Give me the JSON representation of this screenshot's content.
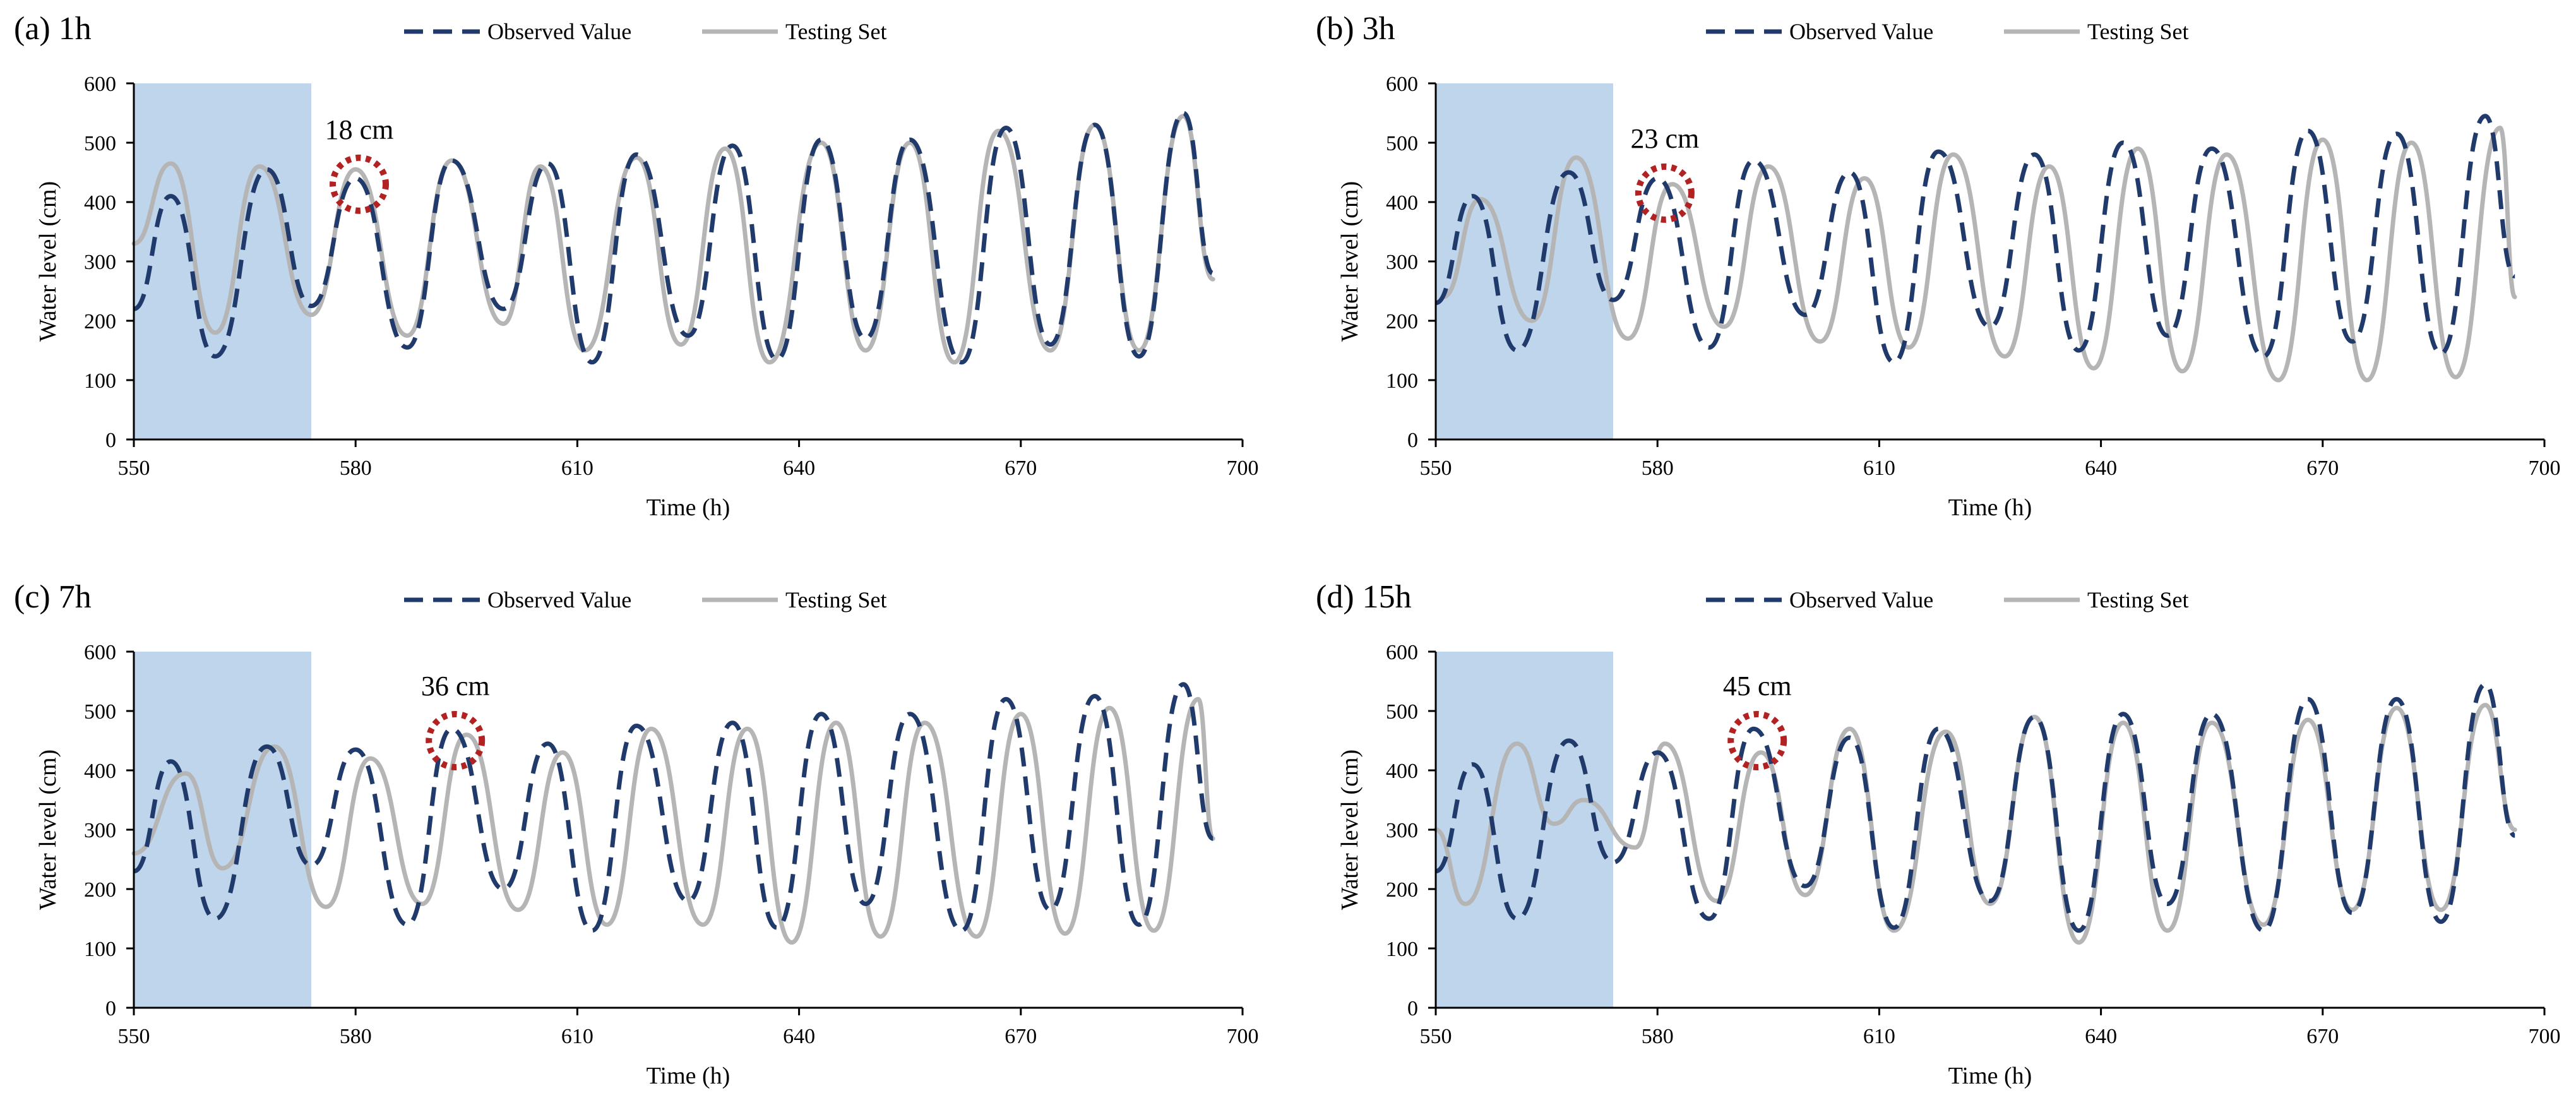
{
  "figure": {
    "colors": {
      "observed": "#1f3a6b",
      "testing": "#b5b5b5",
      "shade": "#bfd5ec",
      "circle": "#b22222",
      "axis": "#000000"
    }
  },
  "chart_data": [
    {
      "type": "line",
      "panel_label": "(a) 1h",
      "xlabel": "Time (h)",
      "ylabel": "Water level (cm)",
      "xlim": [
        550,
        700
      ],
      "ylim": [
        0,
        600
      ],
      "x_ticks": [
        550,
        580,
        610,
        640,
        670,
        700
      ],
      "y_ticks": [
        0,
        100,
        200,
        300,
        400,
        500,
        600
      ],
      "legend": [
        "Observed Value",
        "Testing Set"
      ],
      "shaded_range": [
        550,
        574
      ],
      "annotation": {
        "text": "18 cm",
        "x": 580.5,
        "y": 430
      },
      "series": [
        {
          "name": "Observed Value",
          "x": [
            550,
            555,
            561,
            568,
            574,
            580,
            587,
            593,
            600,
            606,
            612,
            618,
            625,
            631,
            637,
            643,
            649,
            655,
            662,
            668,
            674,
            680,
            686,
            692,
            696
          ],
          "values": [
            220,
            410,
            140,
            455,
            225,
            440,
            155,
            470,
            220,
            465,
            130,
            480,
            175,
            495,
            135,
            505,
            170,
            505,
            130,
            525,
            160,
            530,
            140,
            550,
            280
          ]
        },
        {
          "name": "Testing Set",
          "x": [
            550,
            555,
            561,
            567,
            574,
            580,
            587,
            593,
            600,
            605,
            611,
            618,
            624,
            630,
            636,
            643,
            649,
            655,
            661,
            667,
            674,
            680,
            686,
            692,
            696
          ],
          "values": [
            330,
            465,
            180,
            460,
            210,
            455,
            175,
            470,
            195,
            460,
            150,
            475,
            160,
            490,
            130,
            500,
            150,
            500,
            130,
            520,
            150,
            530,
            150,
            545,
            270
          ]
        }
      ]
    },
    {
      "type": "line",
      "panel_label": "(b) 3h",
      "xlabel": "Time (h)",
      "ylabel": "Water level (cm)",
      "xlim": [
        550,
        700
      ],
      "ylim": [
        0,
        600
      ],
      "x_ticks": [
        550,
        580,
        610,
        640,
        670,
        700
      ],
      "y_ticks": [
        0,
        100,
        200,
        300,
        400,
        500,
        600
      ],
      "legend": [
        "Observed Value",
        "Testing Set"
      ],
      "shaded_range": [
        550,
        574
      ],
      "annotation": {
        "text": "23 cm",
        "x": 581,
        "y": 415
      },
      "series": [
        {
          "name": "Observed Value",
          "x": [
            550,
            555,
            561,
            568,
            574,
            580,
            587,
            593,
            600,
            606,
            612,
            618,
            625,
            631,
            637,
            643,
            649,
            655,
            662,
            668,
            674,
            680,
            686,
            692,
            696
          ],
          "values": [
            230,
            410,
            150,
            450,
            235,
            440,
            155,
            470,
            210,
            450,
            130,
            485,
            190,
            480,
            150,
            500,
            175,
            490,
            140,
            520,
            165,
            515,
            145,
            545,
            275
          ]
        },
        {
          "name": "Testing Set",
          "x": [
            551,
            556,
            563,
            569,
            576,
            582,
            589,
            595,
            602,
            608,
            614,
            620,
            627,
            633,
            639,
            645,
            651,
            657,
            664,
            670,
            676,
            682,
            688,
            694,
            696
          ],
          "values": [
            240,
            405,
            200,
            475,
            170,
            430,
            190,
            460,
            165,
            440,
            155,
            480,
            140,
            460,
            120,
            490,
            115,
            480,
            100,
            505,
            100,
            500,
            105,
            525,
            240
          ]
        }
      ]
    },
    {
      "type": "line",
      "panel_label": "(c) 7h",
      "xlabel": "Time (h)",
      "ylabel": "Water level (cm)",
      "xlim": [
        550,
        700
      ],
      "ylim": [
        0,
        600
      ],
      "x_ticks": [
        550,
        580,
        610,
        640,
        670,
        700
      ],
      "y_ticks": [
        0,
        100,
        200,
        300,
        400,
        500,
        600
      ],
      "legend": [
        "Observed Value",
        "Testing Set"
      ],
      "shaded_range": [
        550,
        574
      ],
      "annotation": {
        "text": "36 cm",
        "x": 593.5,
        "y": 450
      },
      "series": [
        {
          "name": "Observed Value",
          "x": [
            550,
            555,
            561,
            568,
            574,
            580,
            587,
            593,
            600,
            606,
            612,
            618,
            625,
            631,
            637,
            643,
            649,
            655,
            662,
            668,
            674,
            680,
            686,
            692,
            696
          ],
          "values": [
            230,
            415,
            150,
            440,
            240,
            435,
            140,
            470,
            200,
            445,
            130,
            475,
            180,
            480,
            135,
            495,
            175,
            495,
            130,
            520,
            165,
            525,
            140,
            545,
            285
          ]
        },
        {
          "name": "Testing Set",
          "x": [
            550,
            557,
            562,
            569,
            576,
            582,
            589,
            595,
            602,
            608,
            614,
            620,
            627,
            633,
            639,
            645,
            651,
            657,
            664,
            670,
            676,
            682,
            688,
            694,
            696
          ],
          "values": [
            260,
            395,
            235,
            440,
            170,
            420,
            175,
            460,
            165,
            430,
            140,
            470,
            140,
            470,
            110,
            480,
            120,
            480,
            120,
            495,
            125,
            505,
            130,
            520,
            285
          ]
        }
      ]
    },
    {
      "type": "line",
      "panel_label": "(d) 15h",
      "xlabel": "Time (h)",
      "ylabel": "Water level (cm)",
      "xlim": [
        550,
        700
      ],
      "ylim": [
        0,
        600
      ],
      "x_ticks": [
        550,
        580,
        610,
        640,
        670,
        700
      ],
      "y_ticks": [
        0,
        100,
        200,
        300,
        400,
        500,
        600
      ],
      "legend": [
        "Observed Value",
        "Testing Set"
      ],
      "shaded_range": [
        550,
        574
      ],
      "annotation": {
        "text": "45 cm",
        "x": 593.5,
        "y": 450
      },
      "series": [
        {
          "name": "Observed Value",
          "x": [
            550,
            555,
            561,
            568,
            574,
            580,
            587,
            593,
            600,
            606,
            612,
            618,
            625,
            631,
            637,
            643,
            649,
            655,
            662,
            668,
            674,
            680,
            686,
            692,
            696
          ],
          "values": [
            230,
            410,
            150,
            450,
            245,
            430,
            150,
            470,
            205,
            455,
            135,
            470,
            180,
            490,
            130,
            495,
            175,
            495,
            130,
            520,
            160,
            520,
            145,
            545,
            290
          ]
        },
        {
          "name": "Testing Set",
          "x": [
            550,
            554,
            561,
            566,
            570,
            577,
            581,
            588,
            594,
            600,
            606,
            612,
            619,
            625,
            631,
            637,
            643,
            649,
            655,
            662,
            668,
            674,
            680,
            686,
            692,
            696
          ],
          "values": [
            300,
            175,
            445,
            310,
            350,
            270,
            445,
            180,
            430,
            190,
            470,
            130,
            465,
            175,
            490,
            110,
            480,
            130,
            480,
            140,
            485,
            165,
            505,
            165,
            510,
            300
          ]
        }
      ]
    }
  ]
}
